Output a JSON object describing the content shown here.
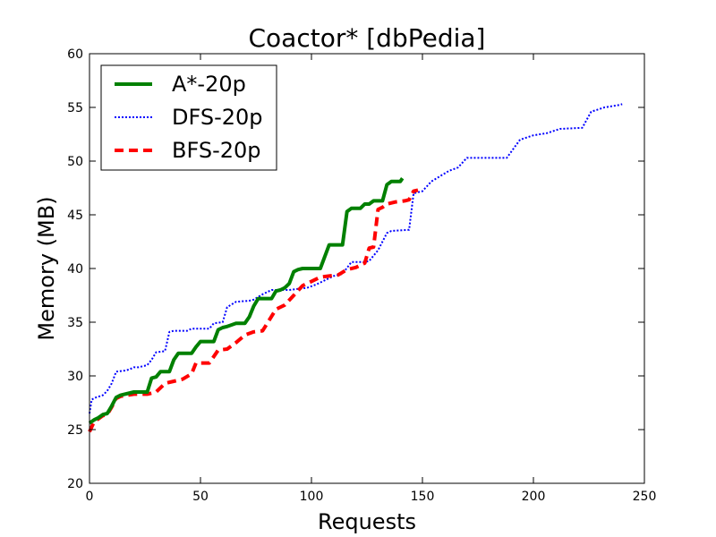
{
  "chart_data": {
    "type": "line",
    "title": "Coactor* [dbPedia]",
    "xlabel": "Requests",
    "ylabel": "Memory (MB)",
    "xlim": [
      0,
      250
    ],
    "ylim": [
      20,
      60
    ],
    "xticks": [
      "0",
      "50",
      "100",
      "150",
      "200",
      "250"
    ],
    "yticks": [
      "20",
      "25",
      "30",
      "35",
      "40",
      "45",
      "50",
      "55",
      "60"
    ],
    "grid": false,
    "legend_position": "top-left",
    "series": [
      {
        "name": "A*-20p",
        "color": "#008000",
        "style": "solid",
        "x": [
          0,
          2,
          4,
          6,
          8,
          10,
          12,
          14,
          20,
          26,
          28,
          30,
          32,
          36,
          38,
          40,
          46,
          48,
          50,
          56,
          58,
          60,
          62,
          66,
          70,
          72,
          74,
          76,
          82,
          84,
          86,
          88,
          90,
          92,
          94,
          96,
          104,
          108,
          114,
          116,
          118,
          122,
          124,
          126,
          128,
          132,
          134,
          136,
          140,
          141
        ],
        "y": [
          25.6,
          25.9,
          26.1,
          26.4,
          26.5,
          27.2,
          28.0,
          28.2,
          28.5,
          28.5,
          29.8,
          29.9,
          30.4,
          30.4,
          31.5,
          32.1,
          32.1,
          32.7,
          33.2,
          33.2,
          34.3,
          34.5,
          34.6,
          34.9,
          34.9,
          35.5,
          36.5,
          37.2,
          37.2,
          37.9,
          38.0,
          38.2,
          38.6,
          39.7,
          39.9,
          40.0,
          40.0,
          42.2,
          42.2,
          45.3,
          45.6,
          45.6,
          46.0,
          46.0,
          46.3,
          46.3,
          47.8,
          48.1,
          48.1,
          48.4
        ]
      },
      {
        "name": "DFS-20p",
        "color": "#0000ff",
        "style": "dotted",
        "x": [
          0,
          1,
          3,
          6,
          8,
          10,
          12,
          16,
          18,
          20,
          22,
          26,
          28,
          30,
          34,
          36,
          38,
          44,
          46,
          54,
          56,
          60,
          62,
          66,
          72,
          74,
          78,
          82,
          86,
          90,
          94,
          98,
          102,
          106,
          110,
          114,
          118,
          124,
          126,
          130,
          134,
          136,
          144,
          146,
          150,
          154,
          158,
          162,
          166,
          170,
          174,
          180,
          188,
          194,
          200,
          206,
          212,
          222,
          226,
          232,
          238,
          240
        ],
        "y": [
          26.5,
          27.8,
          28.0,
          28.2,
          28.6,
          29.3,
          30.4,
          30.5,
          30.6,
          30.8,
          30.8,
          31.0,
          31.5,
          32.2,
          32.3,
          34.1,
          34.2,
          34.2,
          34.4,
          34.4,
          34.9,
          35.0,
          36.4,
          36.9,
          37.0,
          37.1,
          37.6,
          38.0,
          38.0,
          38.0,
          38.1,
          38.2,
          38.5,
          38.9,
          39.3,
          39.5,
          40.6,
          40.6,
          40.7,
          41.7,
          43.3,
          43.5,
          43.6,
          47.0,
          47.2,
          48.1,
          48.6,
          49.1,
          49.4,
          50.3,
          50.3,
          50.3,
          50.3,
          52.0,
          52.4,
          52.6,
          53.0,
          53.1,
          54.6,
          55.0,
          55.2,
          55.3
        ]
      },
      {
        "name": "BFS-20p",
        "color": "#ff0000",
        "style": "dashed",
        "x": [
          0,
          2,
          4,
          6,
          8,
          10,
          12,
          14,
          20,
          26,
          30,
          32,
          34,
          38,
          42,
          46,
          48,
          54,
          58,
          62,
          66,
          70,
          74,
          78,
          84,
          88,
          92,
          96,
          100,
          104,
          108,
          112,
          116,
          120,
          124,
          126,
          128,
          130,
          132,
          134,
          138,
          142,
          144,
          146,
          148
        ],
        "y": [
          24.8,
          25.7,
          26.0,
          26.3,
          26.4,
          27.1,
          27.9,
          28.1,
          28.3,
          28.3,
          28.5,
          28.9,
          29.3,
          29.5,
          29.7,
          30.2,
          31.2,
          31.2,
          32.4,
          32.5,
          33.1,
          33.8,
          34.1,
          34.2,
          36.2,
          36.6,
          37.5,
          38.4,
          38.8,
          39.2,
          39.3,
          39.4,
          39.9,
          40.1,
          40.5,
          41.9,
          42.0,
          45.5,
          45.7,
          46.0,
          46.2,
          46.3,
          46.4,
          47.2,
          47.3
        ]
      }
    ]
  }
}
